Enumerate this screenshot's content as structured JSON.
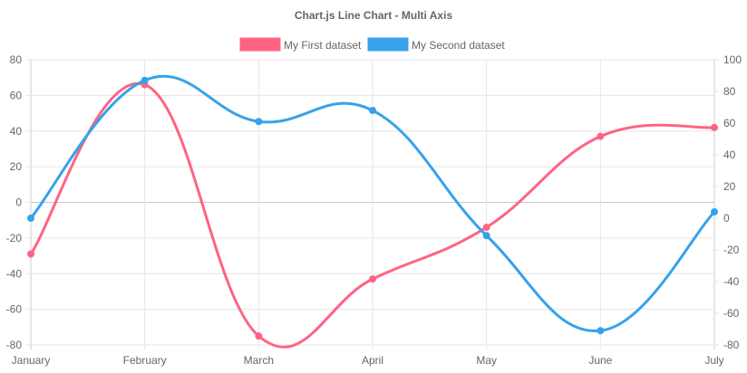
{
  "chart_data": {
    "type": "line",
    "title": "Chart.js Line Chart - Multi Axis",
    "categories": [
      "January",
      "February",
      "March",
      "April",
      "May",
      "June",
      "July"
    ],
    "series": [
      {
        "name": "My First dataset",
        "axis": "left",
        "color": "#ff6384",
        "values": [
          -29,
          66,
          -75,
          -43,
          -14,
          37,
          42
        ]
      },
      {
        "name": "My Second dataset",
        "axis": "right",
        "color": "#36a2eb",
        "values": [
          0,
          87,
          61,
          68,
          -11,
          -71,
          4
        ]
      }
    ],
    "y_left": {
      "min": -80,
      "max": 80,
      "step": 20,
      "ticks": [
        "80",
        "60",
        "40",
        "20",
        "0",
        "-20",
        "-40",
        "-60",
        "-80"
      ]
    },
    "y_right": {
      "min": -80,
      "max": 100,
      "step": 20,
      "ticks": [
        "100",
        "80",
        "60",
        "40",
        "20",
        "0",
        "-20",
        "-40",
        "-60",
        "-80"
      ]
    },
    "legend_position": "top",
    "grid": true
  }
}
